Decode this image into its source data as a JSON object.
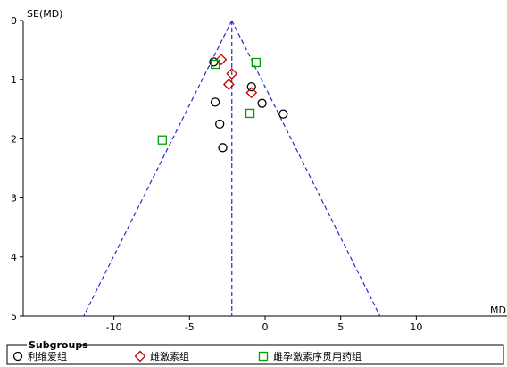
{
  "chart_data": {
    "type": "scatter",
    "title": "",
    "xlabel": "MD",
    "ylabel": "SE(MD)",
    "xlim": [
      -16,
      16
    ],
    "ylim": [
      0,
      5
    ],
    "y_inverted": true,
    "x_ticks": [
      -10,
      -5,
      0,
      5,
      10
    ],
    "y_ticks": [
      0,
      1,
      2,
      3,
      4,
      5
    ],
    "grid": false,
    "funnel": {
      "pooled_md": -2.2,
      "apex_se": 0,
      "base_se": 5
    },
    "legend": {
      "title": "Subgroups",
      "placement": "bottom",
      "items": [
        {
          "label": "利维爱组",
          "marker": "circle",
          "color": "#000000"
        },
        {
          "label": "雌激素组",
          "marker": "diamond",
          "color": "#c00000"
        },
        {
          "label": "雌孕激素序贯用药组",
          "marker": "square",
          "color": "#00a000"
        }
      ]
    },
    "series": [
      {
        "name": "利维爱组",
        "marker": "circle",
        "color": "#000000",
        "points": [
          {
            "x": -3.4,
            "y": 0.7
          },
          {
            "x": -3.3,
            "y": 1.38
          },
          {
            "x": -3.0,
            "y": 1.75
          },
          {
            "x": -2.8,
            "y": 2.15
          },
          {
            "x": -0.9,
            "y": 1.12
          },
          {
            "x": -0.2,
            "y": 1.4
          },
          {
            "x": 1.2,
            "y": 1.58
          }
        ]
      },
      {
        "name": "雌激素组",
        "marker": "diamond",
        "color": "#c00000",
        "points": [
          {
            "x": -2.9,
            "y": 0.66
          },
          {
            "x": -2.2,
            "y": 0.9
          },
          {
            "x": -2.4,
            "y": 1.08
          },
          {
            "x": -0.9,
            "y": 1.22
          }
        ]
      },
      {
        "name": "雌孕激素序贯用药组",
        "marker": "square",
        "color": "#00a000",
        "points": [
          {
            "x": -3.3,
            "y": 0.74
          },
          {
            "x": -0.6,
            "y": 0.71
          },
          {
            "x": -1.0,
            "y": 1.57
          },
          {
            "x": -6.8,
            "y": 2.02
          }
        ]
      }
    ]
  }
}
